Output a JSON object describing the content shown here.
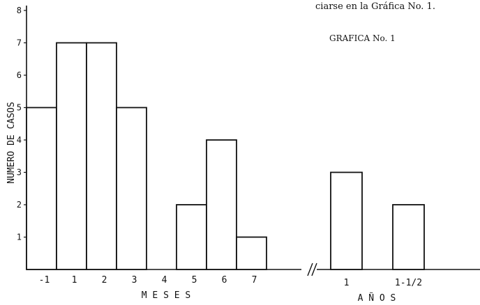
{
  "notes": {
    "top": "ciarse en la Gráfica No. 1.",
    "title": "GRAFICA No. 1"
  },
  "chart_data": {
    "type": "bar",
    "title": "GRAFICA No. 1",
    "ylabel": "NUMERO DE CASOS",
    "ylim": [
      0,
      8
    ],
    "yticks": [
      "1",
      "2",
      "3",
      "4",
      "5",
      "6",
      "7",
      "8"
    ],
    "grid": false,
    "legend": "none",
    "groups": [
      {
        "axis_label": "M E S E S",
        "categories": [
          "-1",
          "1",
          "2",
          "3",
          "4",
          "5",
          "6",
          "7"
        ],
        "values": [
          5,
          7,
          7,
          5,
          0,
          2,
          4,
          1
        ]
      },
      {
        "axis_label": "A Ñ O S",
        "categories": [
          "1",
          "1-1/2"
        ],
        "values": [
          3,
          2
        ]
      }
    ],
    "axis_break": "//"
  }
}
